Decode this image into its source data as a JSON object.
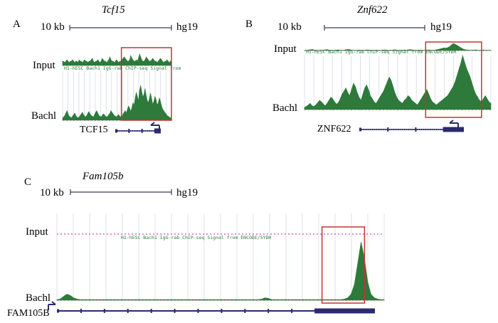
{
  "colors": {
    "signal": "#2d7a3b",
    "highlight": "#c83232",
    "gene": "#2b2a6e",
    "scale": "#3a3a5a",
    "grid": "#cfd4e6",
    "trackText": "#2d7a3b",
    "baselineDots": "#c21fa0"
  },
  "chart_data": [
    {
      "panel": "A",
      "type": "area",
      "gene_title": "Tcf15",
      "scale_label": "10 kb",
      "assembly": "hg19",
      "track_labels": {
        "input": "Input",
        "bach1": "Bachl"
      },
      "track_description": "H1-hESC Bach1 IgG-rab ChIP-seq Signal from",
      "gene_label": "TCF15",
      "strand": "minus",
      "x_domain": [
        0,
        100
      ],
      "highlight_range": [
        54,
        100
      ],
      "input_values": [
        3,
        3,
        2,
        3,
        4,
        3,
        2,
        3,
        3,
        4,
        3,
        2,
        3,
        3,
        2,
        4,
        3,
        3,
        2,
        3,
        4,
        3,
        3,
        2,
        3,
        3,
        4,
        5,
        3,
        2,
        3,
        3,
        4,
        3,
        2,
        3,
        5,
        4,
        3,
        3,
        2,
        3,
        4,
        6,
        4,
        3,
        3,
        2,
        3,
        4,
        3,
        2,
        3,
        3,
        4,
        5,
        6,
        5,
        4,
        3,
        3,
        4,
        7,
        5,
        4,
        3,
        3,
        4,
        3,
        5,
        8,
        6,
        4,
        3,
        3,
        4,
        6,
        5,
        4,
        3,
        3,
        4,
        5,
        4,
        3,
        3,
        2,
        3,
        4,
        5,
        4,
        3,
        2,
        3,
        3,
        4,
        3,
        2,
        3,
        3
      ],
      "bach1_values": [
        3,
        4,
        6,
        9,
        12,
        8,
        5,
        4,
        3,
        5,
        7,
        9,
        6,
        4,
        3,
        4,
        6,
        8,
        10,
        7,
        5,
        4,
        6,
        9,
        11,
        8,
        6,
        5,
        4,
        7,
        10,
        12,
        9,
        6,
        5,
        4,
        6,
        8,
        7,
        5,
        4,
        5,
        7,
        9,
        12,
        10,
        8,
        6,
        5,
        4,
        6,
        7,
        5,
        4,
        5,
        8,
        10,
        12,
        9,
        14,
        18,
        15,
        11,
        16,
        22,
        19,
        28,
        35,
        30,
        24,
        38,
        44,
        36,
        29,
        33,
        40,
        31,
        25,
        22,
        28,
        34,
        27,
        20,
        24,
        30,
        26,
        19,
        22,
        28,
        24,
        18,
        14,
        12,
        10,
        8,
        6,
        5,
        4,
        3,
        3
      ]
    },
    {
      "panel": "B",
      "type": "area",
      "gene_title": "Znf622",
      "scale_label": "10 kb",
      "assembly": "hg19",
      "track_labels": {
        "input": "Input",
        "bach1": "Bachl"
      },
      "track_description": "H1-hESC Bach1 IgG-rab ChIP-seq Signal from ENCODE/SYDH",
      "gene_label": "ZNF622",
      "strand": "minus",
      "x_domain": [
        0,
        100
      ],
      "highlight_range": [
        65,
        95
      ],
      "input_values": [
        2,
        3,
        4,
        6,
        8,
        5,
        3,
        2,
        3,
        4,
        3,
        5,
        7,
        4,
        3,
        2,
        3,
        4,
        5,
        3,
        2,
        3,
        6,
        9,
        7,
        4,
        3,
        2,
        3,
        4,
        3,
        2,
        3,
        5,
        4,
        3,
        2,
        3,
        4,
        3,
        2,
        3,
        4,
        5,
        3,
        2,
        3,
        4,
        6,
        4,
        3,
        2,
        3,
        4,
        3,
        5,
        7,
        5,
        3,
        2,
        3,
        4,
        3,
        2,
        3,
        4,
        5,
        3,
        2,
        3,
        6,
        9,
        12,
        16,
        20,
        18,
        22,
        30,
        42,
        55,
        48,
        40,
        32,
        22,
        14,
        8,
        5,
        4,
        3,
        3,
        4,
        5,
        3,
        2,
        3,
        4,
        3,
        2,
        3,
        3
      ],
      "bach1_values": [
        3,
        4,
        6,
        8,
        5,
        4,
        6,
        9,
        12,
        10,
        7,
        5,
        8,
        12,
        16,
        14,
        10,
        7,
        9,
        14,
        20,
        24,
        28,
        22,
        18,
        26,
        34,
        30,
        22,
        16,
        12,
        20,
        28,
        32,
        26,
        18,
        14,
        10,
        8,
        12,
        16,
        20,
        24,
        30,
        36,
        42,
        38,
        30,
        22,
        16,
        12,
        10,
        8,
        12,
        14,
        18,
        16,
        12,
        10,
        8,
        6,
        10,
        14,
        18,
        22,
        26,
        20,
        14,
        10,
        8,
        6,
        8,
        10,
        12,
        14,
        16,
        18,
        22,
        26,
        30,
        36,
        44,
        52,
        60,
        70,
        62,
        54,
        48,
        42,
        34,
        26,
        20,
        16,
        12,
        10,
        14,
        18,
        14,
        10,
        8
      ]
    },
    {
      "panel": "C",
      "type": "area",
      "gene_title": "Fam105b",
      "scale_label": "10 kb",
      "assembly": "hg19",
      "track_labels": {
        "input": "Input",
        "bach1": "Bachl"
      },
      "track_description": "H1-hESC Bach1 IgG-rab ChIP-seq Signal from ENCODE/SYDH",
      "gene_label": "FAM105B",
      "strand": "plus",
      "x_domain": [
        0,
        100
      ],
      "highlight_range": [
        81,
        94
      ],
      "input_values": [
        0
      ],
      "bach1_values": [
        1,
        2,
        6,
        10,
        8,
        4,
        2,
        1,
        1,
        1,
        1,
        1,
        1,
        1,
        1,
        1,
        1,
        1,
        1,
        1,
        1,
        1,
        1,
        1,
        1,
        1,
        1,
        1,
        1,
        1,
        1,
        1,
        1,
        1,
        1,
        1,
        1,
        1,
        1,
        1,
        1,
        1,
        1,
        1,
        1,
        1,
        1,
        1,
        1,
        1,
        1,
        1,
        1,
        1,
        1,
        1,
        1,
        1,
        1,
        1,
        1,
        1,
        2,
        4,
        3,
        1,
        1,
        1,
        1,
        1,
        1,
        1,
        1,
        1,
        1,
        1,
        1,
        1,
        1,
        1,
        1,
        1,
        1,
        1,
        1,
        1,
        1,
        2,
        4,
        10,
        26,
        60,
        95,
        70,
        30,
        10,
        4,
        2,
        1,
        1
      ]
    }
  ]
}
